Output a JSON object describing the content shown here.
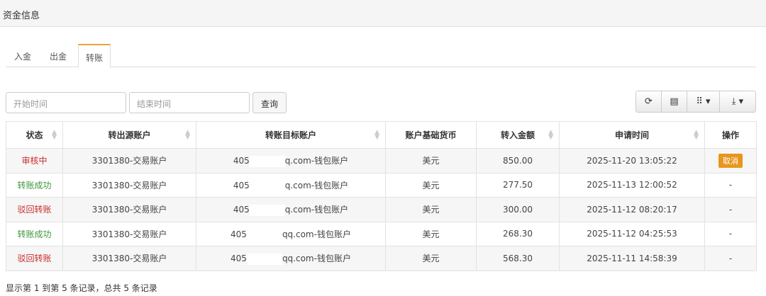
{
  "title": "资金信息",
  "tabs": [
    {
      "label": "入金"
    },
    {
      "label": "出金"
    },
    {
      "label": "转账",
      "active": true
    }
  ],
  "filters": {
    "start_placeholder": "开始时间",
    "end_placeholder": "结束时间",
    "query_label": "查询"
  },
  "toolbar": {
    "icons": [
      "refresh-icon",
      "list-view-icon",
      "columns-icon",
      "export-icon"
    ]
  },
  "table": {
    "columns": [
      "状态",
      "转出源账户",
      "转账目标账户",
      "账户基础货币",
      "转入金额",
      "申请时间",
      "操作"
    ],
    "rows": [
      {
        "status": "审核中",
        "status_color": "#c9302c",
        "source": "3301380-交易账户",
        "target_prefix": "405",
        "target_suffix": "q.com-钱包账户",
        "currency": "美元",
        "amount": "850.00",
        "time": "2025-11-20 13:05:22",
        "action": "取消"
      },
      {
        "status": "转账成功",
        "status_color": "#3c9a3c",
        "source": "3301380-交易账户",
        "target_prefix": "405",
        "target_suffix": "q.com-钱包账户",
        "currency": "美元",
        "amount": "277.50",
        "time": "2025-11-13 12:00:52",
        "action": "-"
      },
      {
        "status": "驳回转账",
        "status_color": "#c9302c",
        "source": "3301380-交易账户",
        "target_prefix": "405",
        "target_suffix": "q.com-钱包账户",
        "currency": "美元",
        "amount": "300.00",
        "time": "2025-11-12 08:20:17",
        "action": "-"
      },
      {
        "status": "转账成功",
        "status_color": "#3c9a3c",
        "source": "3301380-交易账户",
        "target_prefix": "405",
        "target_suffix": "qq.com-钱包账户",
        "currency": "美元",
        "amount": "268.30",
        "time": "2025-11-12 04:25:53",
        "action": "-"
      },
      {
        "status": "驳回转账",
        "status_color": "#c9302c",
        "source": "3301380-交易账户",
        "target_prefix": "405",
        "target_suffix": "qq.com-钱包账户",
        "currency": "美元",
        "amount": "568.30",
        "time": "2025-11-11 14:58:39",
        "action": "-"
      }
    ]
  },
  "footer": "显示第 1 到第 5 条记录，总共 5 条记录",
  "colors": {
    "accent": "#e8961e"
  }
}
